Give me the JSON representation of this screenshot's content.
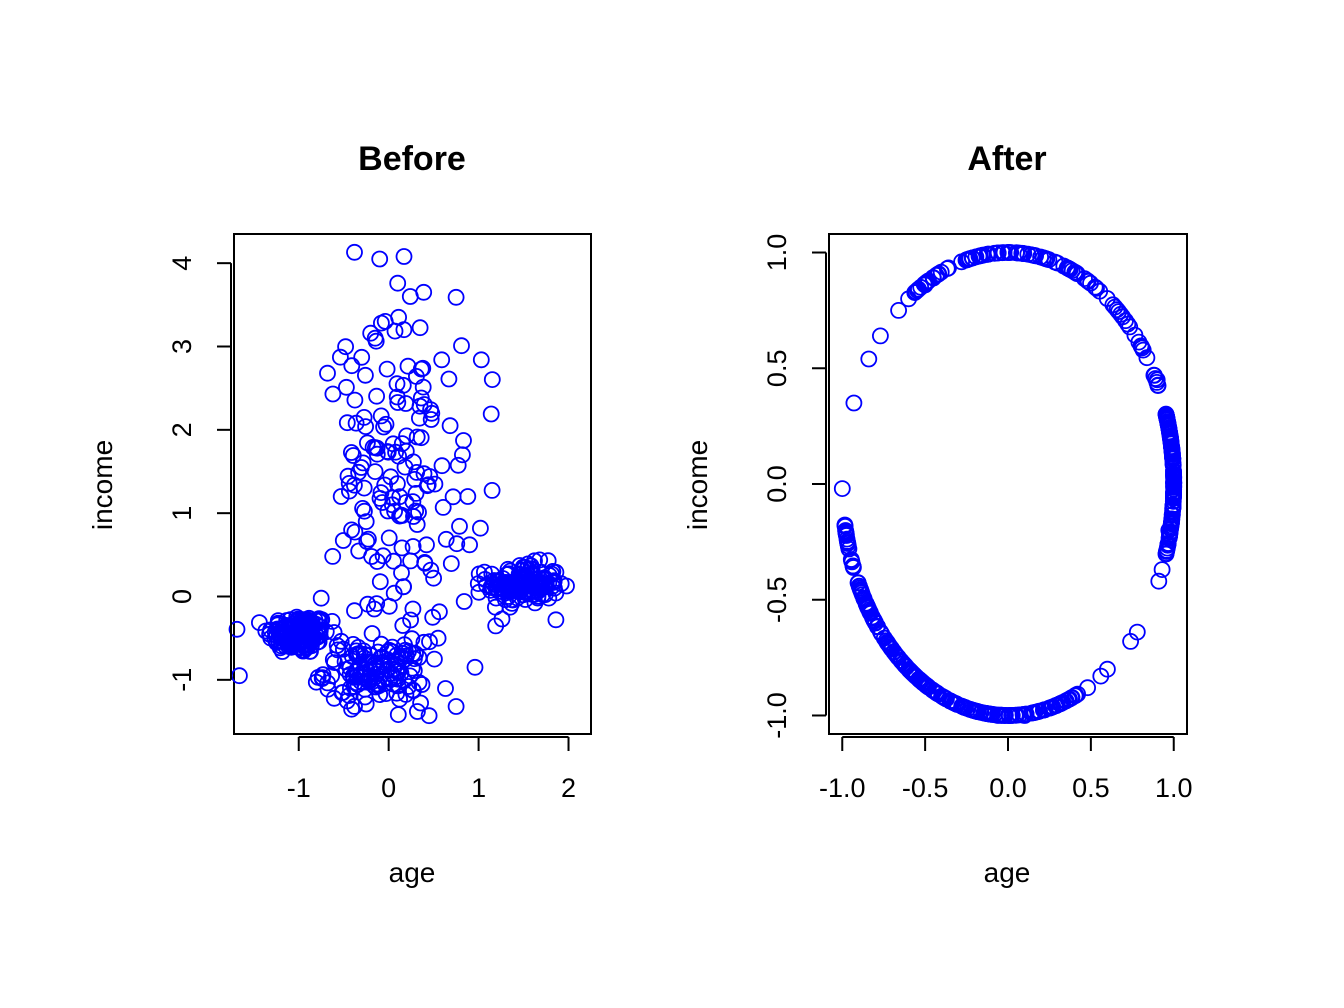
{
  "chart_data": [
    {
      "type": "scatter",
      "title": "Before",
      "xlabel": "age",
      "ylabel": "income",
      "xlim": [
        -1.72,
        2.25
      ],
      "ylim": [
        -1.65,
        4.35
      ],
      "xticks": [
        -1,
        0,
        1,
        2
      ],
      "xtick_labels": [
        "-1",
        "0",
        "1",
        "2"
      ],
      "yticks": [
        -1,
        0,
        1,
        2,
        3,
        4
      ],
      "ytick_labels": [
        "-1",
        "0",
        "1",
        "2",
        "3",
        "4"
      ],
      "color": "#0000ff",
      "marker": "open-circle",
      "grid": false,
      "clusters": [
        {
          "center": [
            -1.0,
            -0.45
          ],
          "spread": [
            0.17,
            0.12
          ],
          "n": 170
        },
        {
          "center": [
            1.5,
            0.15
          ],
          "spread": [
            0.2,
            0.12
          ],
          "n": 150
        },
        {
          "center": [
            -0.15,
            -0.9
          ],
          "spread": [
            0.28,
            0.18
          ],
          "n": 140
        },
        {
          "center": [
            0.1,
            1.4
          ],
          "spread": [
            0.35,
            0.9
          ],
          "n": 140
        }
      ],
      "points": [
        [
          -0.38,
          4.13
        ],
        [
          -0.1,
          4.05
        ],
        [
          0.17,
          4.08
        ],
        [
          0.1,
          3.76
        ],
        [
          0.24,
          3.6
        ],
        [
          0.39,
          3.65
        ],
        [
          0.75,
          3.59
        ],
        [
          0.11,
          3.35
        ],
        [
          -0.2,
          3.16
        ],
        [
          -0.15,
          3.1
        ],
        [
          0.81,
          3.01
        ],
        [
          1.03,
          2.84
        ],
        [
          0.59,
          2.84
        ],
        [
          -0.3,
          2.87
        ],
        [
          -0.41,
          2.77
        ],
        [
          -0.68,
          2.68
        ],
        [
          -0.47,
          2.51
        ],
        [
          -0.62,
          2.43
        ],
        [
          0.67,
          2.61
        ],
        [
          1.14,
          2.19
        ],
        [
          -1.66,
          -0.95
        ],
        [
          0.96,
          -0.85
        ],
        [
          0.75,
          -1.32
        ],
        [
          0.45,
          -1.43
        ],
        [
          0.32,
          -1.38
        ],
        [
          -0.25,
          -1.29
        ],
        [
          1.86,
          -0.28
        ],
        [
          1.26,
          -0.27
        ],
        [
          0.84,
          -0.06
        ],
        [
          0.82,
          1.7
        ],
        [
          0.9,
          0.62
        ],
        [
          1.02,
          0.82
        ],
        [
          0.88,
          1.2
        ],
        [
          -0.75,
          -0.02
        ],
        [
          0.5,
          0.22
        ],
        [
          0.27,
          -0.15
        ],
        [
          0.55,
          -0.5
        ],
        [
          -0.38,
          -0.17
        ],
        [
          0.49,
          -0.25
        ],
        [
          -0.16,
          -0.15
        ]
      ]
    },
    {
      "type": "scatter",
      "title": "After",
      "xlabel": "age",
      "ylabel": "income",
      "xlim": [
        -1.08,
        1.08
      ],
      "ylim": [
        -1.08,
        1.08
      ],
      "xticks": [
        -1.0,
        -0.5,
        0.0,
        0.5,
        1.0
      ],
      "xtick_labels": [
        "-1.0",
        "-0.5",
        "0.0",
        "0.5",
        "1.0"
      ],
      "yticks": [
        -1.0,
        -0.5,
        0.0,
        0.5,
        1.0
      ],
      "ytick_labels": [
        "-1.0",
        "-0.5",
        "0.0",
        "0.5",
        "1.0"
      ],
      "color": "#0000ff",
      "marker": "open-circle",
      "grid": false,
      "shape": "unit circle (all points lie on x^2 + y^2 = 1)",
      "arcs_deg": [
        {
          "from": -18,
          "to": 18,
          "n": 150,
          "note": "dense right arc"
        },
        {
          "from": 190,
          "to": 265,
          "n": 170,
          "note": "dense lower-left arc"
        },
        {
          "from": 265,
          "to": 295,
          "n": 60
        },
        {
          "from": 60,
          "to": 125,
          "n": 80
        },
        {
          "from": 25,
          "to": 60,
          "n": 25
        }
      ],
      "points": [
        [
          -1.0,
          -0.02
        ],
        [
          -0.93,
          0.35
        ],
        [
          -0.84,
          0.54
        ],
        [
          -0.77,
          0.64
        ],
        [
          -0.66,
          0.75
        ],
        [
          -0.6,
          0.8
        ],
        [
          -0.5,
          0.86
        ],
        [
          -0.45,
          0.89
        ],
        [
          0.9,
          0.45
        ],
        [
          0.88,
          0.47
        ],
        [
          0.93,
          -0.37
        ],
        [
          0.91,
          -0.42
        ],
        [
          0.97,
          -0.2
        ],
        [
          0.78,
          -0.64
        ],
        [
          0.74,
          -0.68
        ],
        [
          0.6,
          -0.8
        ],
        [
          0.56,
          -0.83
        ],
        [
          0.48,
          -0.88
        ],
        [
          -0.06,
          -1.0
        ],
        [
          0.1,
          -1.0
        ]
      ]
    }
  ]
}
